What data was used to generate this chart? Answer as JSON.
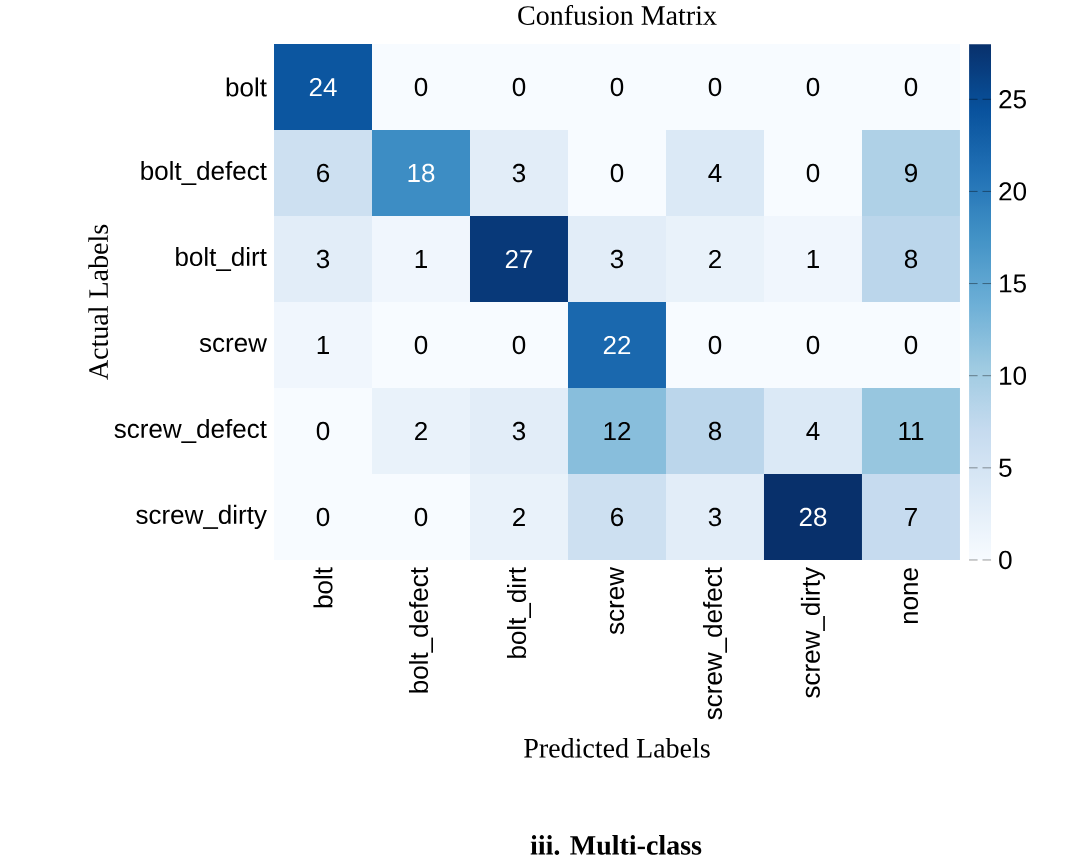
{
  "chart_data": {
    "type": "heatmap",
    "title": "Confusion Matrix",
    "xlabel": "Predicted Labels",
    "ylabel": "Actual Labels",
    "categories": [
      "bolt",
      "bolt_defect",
      "bolt_dirt",
      "screw",
      "screw_defect",
      "screw_dirty",
      "none"
    ],
    "y_categories": [
      "bolt",
      "bolt_defect",
      "bolt_dirt",
      "screw",
      "screw_defect",
      "screw_dirty"
    ],
    "cells": [
      [
        24,
        0,
        0,
        0,
        0,
        0,
        0
      ],
      [
        6,
        18,
        3,
        0,
        4,
        0,
        9
      ],
      [
        3,
        1,
        27,
        3,
        2,
        1,
        8
      ],
      [
        1,
        0,
        0,
        22,
        0,
        0,
        0
      ],
      [
        0,
        2,
        3,
        12,
        8,
        4,
        11
      ],
      [
        0,
        0,
        2,
        6,
        3,
        28,
        7
      ]
    ],
    "data_labels": true,
    "clim": [
      0,
      28
    ],
    "cticks": [
      0,
      5,
      10,
      15,
      20,
      25
    ],
    "annotations": [
      "iii. Multi-class"
    ]
  }
}
